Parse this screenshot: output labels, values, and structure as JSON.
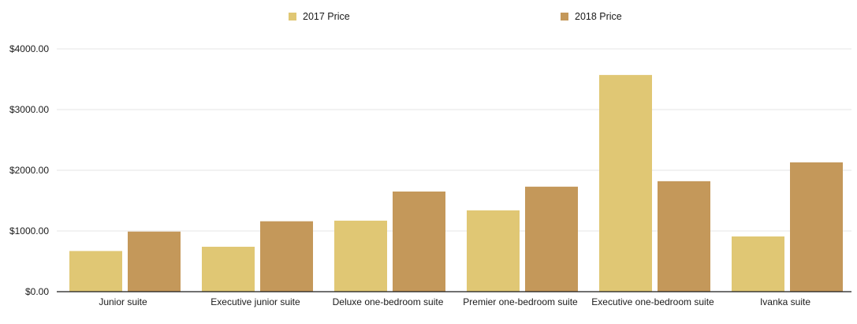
{
  "chart_data": {
    "type": "bar",
    "categories": [
      "Junior suite",
      "Executive junior suite",
      "Deluxe one-bedroom suite",
      "Premier one-bedroom suite",
      "Executive one-bedroom suite",
      "Ivanka suite"
    ],
    "series": [
      {
        "name": "2017 Price",
        "color": "#e0c774",
        "values": [
          670,
          740,
          1170,
          1340,
          3570,
          910
        ]
      },
      {
        "name": "2018 Price",
        "color": "#c4985a",
        "values": [
          990,
          1160,
          1650,
          1730,
          1820,
          2130
        ]
      }
    ],
    "y_ticks": [
      "$0.00",
      "$1000.00",
      "$2000.00",
      "$3000.00",
      "$4000.00"
    ],
    "ylim": [
      0,
      4000
    ],
    "title": "",
    "xlabel": "",
    "ylabel": "",
    "grid": true,
    "legend_position": "top"
  }
}
